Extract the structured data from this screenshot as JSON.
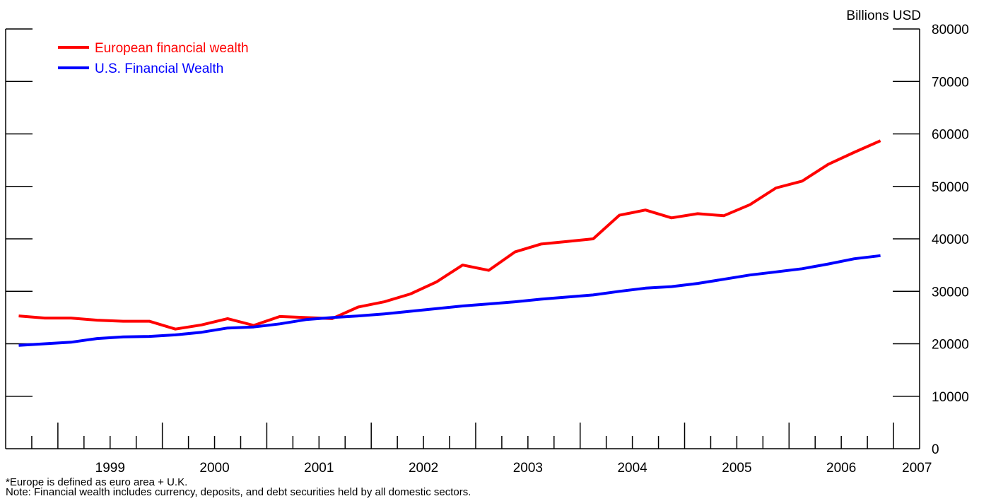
{
  "chart_data": {
    "type": "line",
    "title": "",
    "xlabel": "",
    "ylabel": "Billions USD",
    "ylim": [
      0,
      80000
    ],
    "yticks": [
      "0",
      "10000",
      "20000",
      "30000",
      "40000",
      "50000",
      "60000",
      "70000",
      "80000"
    ],
    "x_year_labels": [
      "1999",
      "2000",
      "2001",
      "2002",
      "2003",
      "2004",
      "2005",
      "2006",
      "2007"
    ],
    "x_range": [
      1998.5,
      2007.25
    ],
    "legend_position": "top-left",
    "grid": false,
    "x": [
      "1998Q3",
      "1998Q4",
      "1999Q1",
      "1999Q2",
      "1999Q3",
      "1999Q4",
      "2000Q1",
      "2000Q2",
      "2000Q3",
      "2000Q4",
      "2001Q1",
      "2001Q2",
      "2001Q3",
      "2001Q4",
      "2002Q1",
      "2002Q2",
      "2002Q3",
      "2002Q4",
      "2003Q1",
      "2003Q2",
      "2003Q3",
      "2003Q4",
      "2004Q1",
      "2004Q2",
      "2004Q3",
      "2004Q4",
      "2005Q1",
      "2005Q2",
      "2005Q3",
      "2005Q4",
      "2006Q1",
      "2006Q2",
      "2006Q3",
      "2006Q4"
    ],
    "series": [
      {
        "name": "European financial wealth",
        "color": "#ff0000",
        "values": [
          25300,
          24900,
          24900,
          24500,
          24300,
          24300,
          22800,
          23600,
          24800,
          23500,
          25200,
          25000,
          24800,
          27000,
          28000,
          29500,
          31800,
          35000,
          34000,
          37500,
          39000,
          39500,
          40000,
          44500,
          45500,
          44000,
          44800,
          44400,
          46500,
          49700,
          51000,
          54200,
          56500,
          58700
        ]
      },
      {
        "name": "U.S. Financial Wealth",
        "color": "#0000ff",
        "values": [
          19700,
          20000,
          20300,
          21000,
          21300,
          21400,
          21700,
          22200,
          23000,
          23200,
          23800,
          24600,
          25000,
          25300,
          25700,
          26200,
          26700,
          27200,
          27600,
          28000,
          28500,
          28900,
          29300,
          30000,
          30600,
          30900,
          31500,
          32300,
          33100,
          33700,
          34300,
          35200,
          36200,
          36800
        ]
      }
    ],
    "notes": [
      "*Europe is defined as euro area + U.K.",
      "Note: Financial wealth includes currency, deposits, and debt securities held by all domestic sectors."
    ]
  }
}
